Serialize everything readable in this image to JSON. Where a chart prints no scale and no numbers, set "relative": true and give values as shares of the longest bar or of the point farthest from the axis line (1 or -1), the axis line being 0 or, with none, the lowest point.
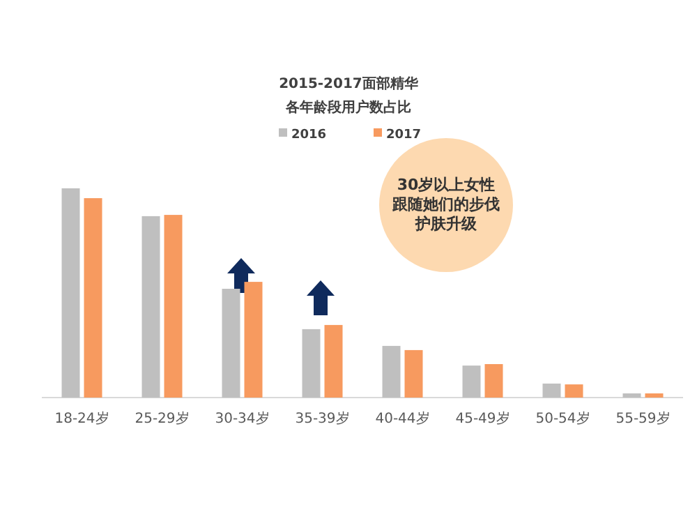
{
  "chart_data": {
    "type": "bar",
    "title": "2015-2017面部精华",
    "subtitle": "各年龄段用户数占比",
    "relative": true,
    "legend": "top",
    "categories": [
      "18-24岁",
      "25-29岁",
      "30-34岁",
      "35-39岁",
      "40-44岁",
      "45-49岁",
      "50-54岁",
      "55-59岁"
    ],
    "series": [
      {
        "name": "2016",
        "color": "#bfbfbf",
        "values": [
          1,
          0.867,
          0.52,
          0.327,
          0.247,
          0.153,
          0.067,
          0.02
        ]
      },
      {
        "name": "2017",
        "color": "#f79a5f",
        "values": [
          0.953,
          0.873,
          0.553,
          0.347,
          0.227,
          0.16,
          0.063,
          0.02
        ]
      }
    ],
    "annotations": [
      "30岁以上女性跟随她们的步伐护肤升级"
    ]
  }
}
